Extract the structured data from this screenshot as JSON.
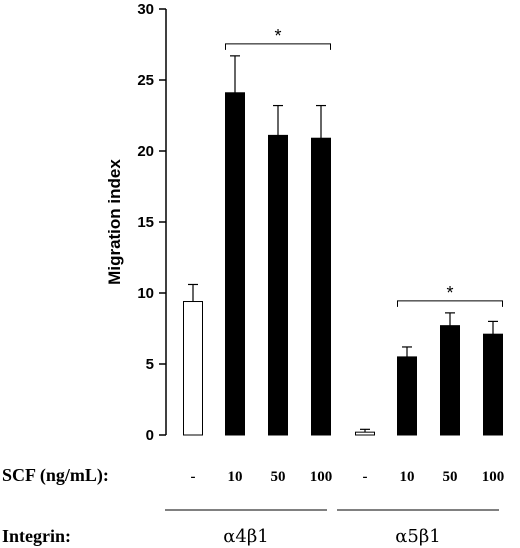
{
  "chart_data": {
    "type": "bar",
    "ylabel": "Migration index",
    "ylim": [
      0,
      30
    ],
    "yticks": [
      "0",
      "5",
      "10",
      "15",
      "20",
      "25",
      "30"
    ],
    "row_labels": {
      "scf": "SCF (ng/mL):",
      "integrin": "Integrin:"
    },
    "categories": [
      "-",
      "10",
      "50",
      "100",
      "-",
      "10",
      "50",
      "100"
    ],
    "values": [
      9.4,
      24.1,
      21.1,
      20.9,
      0.2,
      5.5,
      7.7,
      7.1
    ],
    "errors": [
      1.2,
      2.6,
      2.1,
      2.3,
      0.2,
      0.7,
      0.9,
      0.9
    ],
    "bar_fill": [
      "#ffffff",
      "#000000",
      "#000000",
      "#000000",
      "#ffffff",
      "#000000",
      "#000000",
      "#000000"
    ],
    "groups": [
      {
        "label": "α4β1",
        "from": 0,
        "to": 3
      },
      {
        "label": "α5β1",
        "from": 4,
        "to": 7
      }
    ],
    "significance": [
      {
        "from": 1,
        "to": 3,
        "label": "*"
      },
      {
        "from": 5,
        "to": 7,
        "label": "*"
      }
    ]
  }
}
